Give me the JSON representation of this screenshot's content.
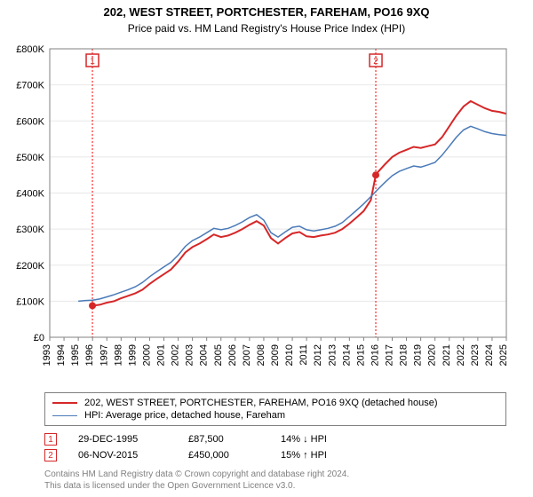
{
  "title": "202, WEST STREET, PORTCHESTER, FAREHAM, PO16 9XQ",
  "subtitle": "Price paid vs. HM Land Registry's House Price Index (HPI)",
  "chart": {
    "type": "line",
    "background_color": "#ffffff",
    "grid_color": "#e8e8e8",
    "border_color": "#808080",
    "xlim": [
      1993,
      2025
    ],
    "ylim": [
      0,
      800000
    ],
    "ytick_step": 100000,
    "yticks": [
      "£0",
      "£100K",
      "£200K",
      "£300K",
      "£400K",
      "£500K",
      "£600K",
      "£700K",
      "£800K"
    ],
    "xticks": [
      1993,
      1994,
      1995,
      1996,
      1997,
      1998,
      1999,
      2000,
      2001,
      2002,
      2003,
      2004,
      2005,
      2006,
      2007,
      2008,
      2009,
      2010,
      2011,
      2012,
      2013,
      2014,
      2015,
      2016,
      2017,
      2018,
      2019,
      2020,
      2021,
      2022,
      2023,
      2024,
      2025
    ],
    "series": [
      {
        "name": "price_paid",
        "color": "#d62728",
        "width": 2,
        "data": [
          [
            1995.99,
            87500
          ],
          [
            1996.5,
            90000
          ],
          [
            1997.0,
            96000
          ],
          [
            1997.5,
            100000
          ],
          [
            1998.0,
            108000
          ],
          [
            1998.5,
            115000
          ],
          [
            1999.0,
            122000
          ],
          [
            1999.5,
            132000
          ],
          [
            2000.0,
            148000
          ],
          [
            2000.5,
            162000
          ],
          [
            2001.0,
            175000
          ],
          [
            2001.5,
            188000
          ],
          [
            2002.0,
            210000
          ],
          [
            2002.5,
            235000
          ],
          [
            2003.0,
            250000
          ],
          [
            2003.5,
            260000
          ],
          [
            2004.0,
            272000
          ],
          [
            2004.5,
            285000
          ],
          [
            2005.0,
            278000
          ],
          [
            2005.5,
            282000
          ],
          [
            2006.0,
            290000
          ],
          [
            2006.5,
            300000
          ],
          [
            2007.0,
            312000
          ],
          [
            2007.5,
            322000
          ],
          [
            2008.0,
            310000
          ],
          [
            2008.5,
            275000
          ],
          [
            2009.0,
            260000
          ],
          [
            2009.5,
            275000
          ],
          [
            2010.0,
            288000
          ],
          [
            2010.5,
            292000
          ],
          [
            2011.0,
            280000
          ],
          [
            2011.5,
            278000
          ],
          [
            2012.0,
            282000
          ],
          [
            2012.5,
            285000
          ],
          [
            2013.0,
            290000
          ],
          [
            2013.5,
            300000
          ],
          [
            2014.0,
            315000
          ],
          [
            2014.5,
            332000
          ],
          [
            2015.0,
            350000
          ],
          [
            2015.5,
            380000
          ],
          [
            2015.85,
            450000
          ],
          [
            2016.0,
            458000
          ],
          [
            2016.5,
            480000
          ],
          [
            2017.0,
            500000
          ],
          [
            2017.5,
            512000
          ],
          [
            2018.0,
            520000
          ],
          [
            2018.5,
            528000
          ],
          [
            2019.0,
            525000
          ],
          [
            2019.5,
            530000
          ],
          [
            2020.0,
            535000
          ],
          [
            2020.5,
            555000
          ],
          [
            2021.0,
            585000
          ],
          [
            2021.5,
            615000
          ],
          [
            2022.0,
            640000
          ],
          [
            2022.5,
            655000
          ],
          [
            2023.0,
            645000
          ],
          [
            2023.5,
            635000
          ],
          [
            2024.0,
            628000
          ],
          [
            2024.5,
            625000
          ],
          [
            2025.0,
            620000
          ]
        ]
      },
      {
        "name": "hpi",
        "color": "#4a7ab8",
        "width": 1.5,
        "data": [
          [
            1995.0,
            100000
          ],
          [
            1995.5,
            102000
          ],
          [
            1996.0,
            103000
          ],
          [
            1996.5,
            106000
          ],
          [
            1997.0,
            112000
          ],
          [
            1997.5,
            118000
          ],
          [
            1998.0,
            125000
          ],
          [
            1998.5,
            132000
          ],
          [
            1999.0,
            140000
          ],
          [
            1999.5,
            152000
          ],
          [
            2000.0,
            168000
          ],
          [
            2000.5,
            182000
          ],
          [
            2001.0,
            195000
          ],
          [
            2001.5,
            208000
          ],
          [
            2002.0,
            228000
          ],
          [
            2002.5,
            252000
          ],
          [
            2003.0,
            268000
          ],
          [
            2003.5,
            278000
          ],
          [
            2004.0,
            290000
          ],
          [
            2004.5,
            302000
          ],
          [
            2005.0,
            298000
          ],
          [
            2005.5,
            302000
          ],
          [
            2006.0,
            310000
          ],
          [
            2006.5,
            320000
          ],
          [
            2007.0,
            332000
          ],
          [
            2007.5,
            340000
          ],
          [
            2008.0,
            325000
          ],
          [
            2008.5,
            290000
          ],
          [
            2009.0,
            278000
          ],
          [
            2009.5,
            292000
          ],
          [
            2010.0,
            305000
          ],
          [
            2010.5,
            308000
          ],
          [
            2011.0,
            298000
          ],
          [
            2011.5,
            295000
          ],
          [
            2012.0,
            298000
          ],
          [
            2012.5,
            302000
          ],
          [
            2013.0,
            308000
          ],
          [
            2013.5,
            318000
          ],
          [
            2014.0,
            335000
          ],
          [
            2014.5,
            352000
          ],
          [
            2015.0,
            370000
          ],
          [
            2015.5,
            390000
          ],
          [
            2016.0,
            410000
          ],
          [
            2016.5,
            430000
          ],
          [
            2017.0,
            448000
          ],
          [
            2017.5,
            460000
          ],
          [
            2018.0,
            468000
          ],
          [
            2018.5,
            475000
          ],
          [
            2019.0,
            472000
          ],
          [
            2019.5,
            478000
          ],
          [
            2020.0,
            485000
          ],
          [
            2020.5,
            505000
          ],
          [
            2021.0,
            530000
          ],
          [
            2021.5,
            555000
          ],
          [
            2022.0,
            575000
          ],
          [
            2022.5,
            585000
          ],
          [
            2023.0,
            578000
          ],
          [
            2023.5,
            570000
          ],
          [
            2024.0,
            565000
          ],
          [
            2024.5,
            562000
          ],
          [
            2025.0,
            560000
          ]
        ]
      }
    ],
    "markers": [
      {
        "num": "1",
        "year": 1995.99,
        "value": 87500
      },
      {
        "num": "2",
        "year": 2015.85,
        "value": 450000
      }
    ]
  },
  "legend": {
    "items": [
      {
        "color": "#d62728",
        "label": "202, WEST STREET, PORTCHESTER, FAREHAM, PO16 9XQ (detached house)"
      },
      {
        "color": "#4a7ab8",
        "label": "HPI: Average price, detached house, Fareham"
      }
    ]
  },
  "sales": [
    {
      "num": "1",
      "date": "29-DEC-1995",
      "price": "£87,500",
      "hpi": "14% ↓ HPI"
    },
    {
      "num": "2",
      "date": "06-NOV-2015",
      "price": "£450,000",
      "hpi": "15% ↑ HPI"
    }
  ],
  "footer": {
    "line1": "Contains HM Land Registry data © Crown copyright and database right 2024.",
    "line2": "This data is licensed under the Open Government Licence v3.0."
  }
}
